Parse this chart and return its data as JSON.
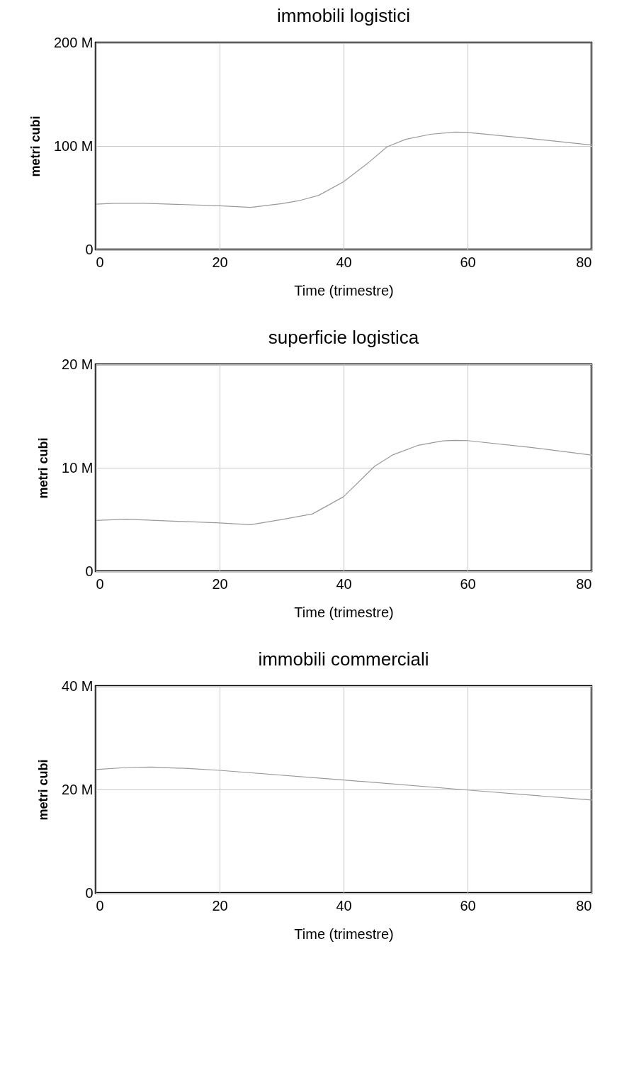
{
  "chart_data": [
    {
      "type": "line",
      "title": "immobili logistici",
      "xlabel": "Time (trimestre)",
      "ylabel": "metri cubi",
      "grid": true,
      "xlim": [
        0,
        80
      ],
      "xticks": [
        0,
        20,
        40,
        60,
        80
      ],
      "ylim": [
        0,
        200000000
      ],
      "yticks": [
        {
          "value": 0,
          "label": "0"
        },
        {
          "value": 100000000,
          "label": "100 M"
        },
        {
          "value": 200000000,
          "label": "200 M"
        }
      ],
      "series": [
        {
          "color": "#999999",
          "x": [
            0,
            3,
            8,
            20,
            25,
            30,
            33,
            36,
            40,
            44,
            47,
            50,
            54,
            58,
            60,
            70,
            80
          ],
          "values": [
            43700000,
            44600000,
            44600000,
            42200000,
            40700000,
            44300000,
            47400000,
            52300000,
            65400000,
            83800000,
            99100000,
            106400000,
            111300000,
            113500000,
            113100000,
            107300000,
            100900000
          ]
        }
      ]
    },
    {
      "type": "line",
      "title": "superficie logistica",
      "xlabel": "Time (trimestre)",
      "ylabel": "metri cubi",
      "grid": true,
      "xlim": [
        0,
        80
      ],
      "xticks": [
        0,
        20,
        40,
        60,
        80
      ],
      "ylim": [
        0,
        20000000
      ],
      "yticks": [
        {
          "value": 0,
          "label": "0"
        },
        {
          "value": 10000000,
          "label": "10 M"
        },
        {
          "value": 20000000,
          "label": "20 M"
        }
      ],
      "series": [
        {
          "color": "#999999",
          "x": [
            0,
            5,
            20,
            25,
            30,
            35,
            40,
            45,
            48,
            52,
            56,
            58,
            60,
            70,
            80
          ],
          "values": [
            4900000,
            5020000,
            4660000,
            4500000,
            4990000,
            5540000,
            7200000,
            10140000,
            11260000,
            12160000,
            12590000,
            12650000,
            12620000,
            11980000,
            11230000
          ]
        }
      ]
    },
    {
      "type": "line",
      "title": "immobili commerciali",
      "xlabel": "Time (trimestre)",
      "ylabel": "metri cubi",
      "grid": true,
      "xlim": [
        0,
        80
      ],
      "xticks": [
        0,
        20,
        40,
        60,
        80
      ],
      "ylim": [
        0,
        40000000
      ],
      "yticks": [
        {
          "value": 0,
          "label": "0"
        },
        {
          "value": 20000000,
          "label": "20 M"
        },
        {
          "value": 40000000,
          "label": "40 M"
        }
      ],
      "series": [
        {
          "color": "#999999",
          "x": [
            0,
            5,
            9,
            15,
            20,
            40,
            60,
            80
          ],
          "values": [
            23850000,
            24250000,
            24320000,
            24050000,
            23700000,
            21840000,
            19900000,
            17960000
          ]
        }
      ]
    }
  ]
}
